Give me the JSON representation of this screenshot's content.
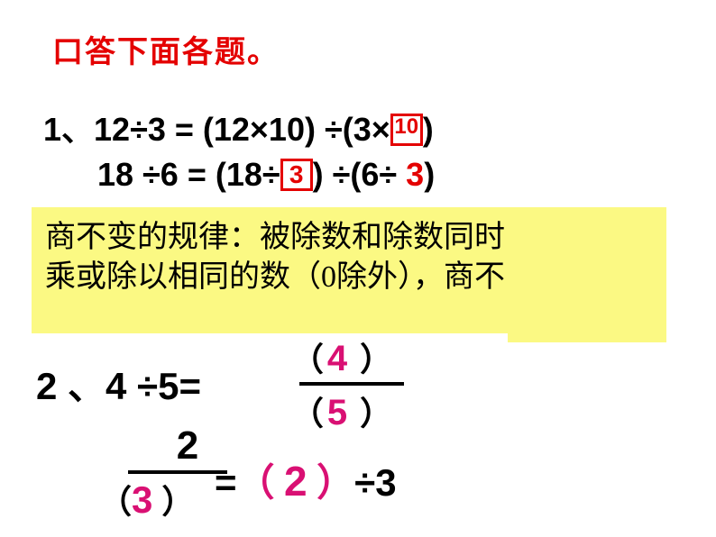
{
  "title": "口答下面各题。",
  "q1": {
    "line1_prefix": "1、12÷3 = (12×10) ÷(3×",
    "line1_box": "10",
    "line1_suffix": ")",
    "line2_prefix": "18 ÷6 = (18÷",
    "line2_box": "3",
    "line2_mid": ") ÷(6÷ ",
    "line2_ans": "3",
    "line2_suffix": ")"
  },
  "rule": {
    "line1": "商不变的规律：被除数和除数同时",
    "line2": "乘或除以相同的数（0除外），商不"
  },
  "q2": {
    "label": "2 、4 ÷5=",
    "num": "4",
    "den": "5"
  },
  "q3": {
    "num": "2",
    "den": "3",
    "eq": "=",
    "ans": "2",
    "tail": "÷3"
  },
  "colors": {
    "red": "#e40000",
    "magenta": "#d91073",
    "highlight": "#fbf983",
    "black": "#000000",
    "bg": "#ffffff"
  }
}
